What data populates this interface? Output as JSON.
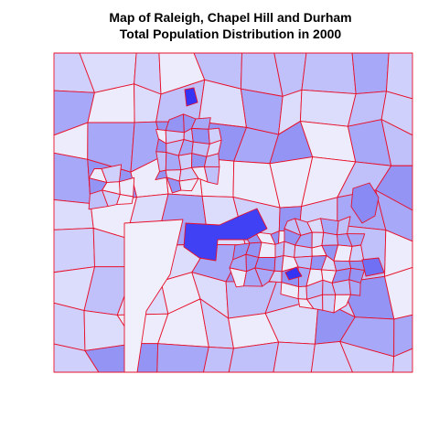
{
  "title": [
    "Map of Raleigh, Chapel Hill and Durham",
    "Total Population Distribution in 2000"
  ]
}
